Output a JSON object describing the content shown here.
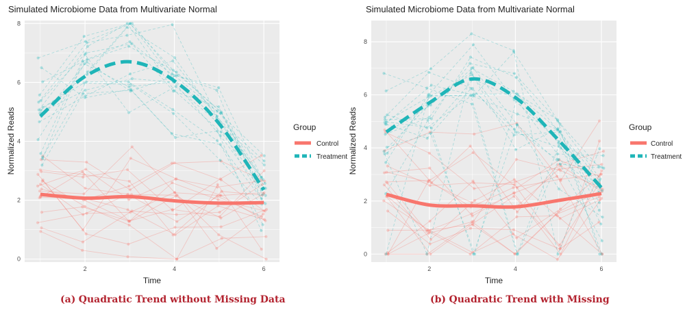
{
  "colors": {
    "control": "#f8766d",
    "treatment": "#1fb5b8",
    "panel_bg": "#ebebeb",
    "grid": "#ffffff",
    "caption": "#b3232f"
  },
  "captions": [
    {
      "label": "(a)",
      "text": "Quadratic Trend without Missing Data"
    },
    {
      "label": "(b)",
      "text": "Quadratic Trend with Missing"
    }
  ],
  "chart_data": [
    {
      "type": "line",
      "title": "Simulated Microbiome Data from Multivariate Normal",
      "xlabel": "Time",
      "ylabel": "Normalized Reads",
      "x": [
        1,
        2,
        3,
        4,
        5,
        6
      ],
      "xticks": [
        2,
        4,
        6
      ],
      "yticks": [
        0,
        2,
        4,
        6,
        8
      ],
      "xlim": [
        0.65,
        6.35
      ],
      "ylim": [
        -0.1,
        8.1
      ],
      "grid": true,
      "legend": {
        "title": "Group",
        "position": "right",
        "entries": [
          "Control",
          "Treatment"
        ]
      },
      "series": [
        {
          "name": "Control",
          "values": [
            2.2,
            2.07,
            2.12,
            1.98,
            1.9,
            1.92
          ]
        },
        {
          "name": "Treatment",
          "values": [
            4.85,
            6.2,
            6.7,
            6.05,
            4.6,
            2.35
          ]
        }
      ]
    },
    {
      "type": "line",
      "title": "Simulated Microbiome Data from Multivariate Normal",
      "xlabel": "Time",
      "ylabel": "Normalized Reads",
      "x": [
        1,
        2,
        3,
        4,
        5,
        6
      ],
      "xticks": [
        2,
        4,
        6
      ],
      "yticks": [
        0,
        2,
        4,
        6,
        8
      ],
      "xlim": [
        0.65,
        6.35
      ],
      "ylim": [
        -0.3,
        8.8
      ],
      "grid": true,
      "legend": {
        "title": "Group",
        "position": "right",
        "entries": [
          "Control",
          "Treatment"
        ]
      },
      "series": [
        {
          "name": "Control",
          "values": [
            2.25,
            1.85,
            1.82,
            1.78,
            2.02,
            2.28
          ]
        },
        {
          "name": "Treatment",
          "values": [
            4.6,
            5.7,
            6.6,
            5.9,
            4.3,
            2.5
          ]
        }
      ]
    }
  ]
}
